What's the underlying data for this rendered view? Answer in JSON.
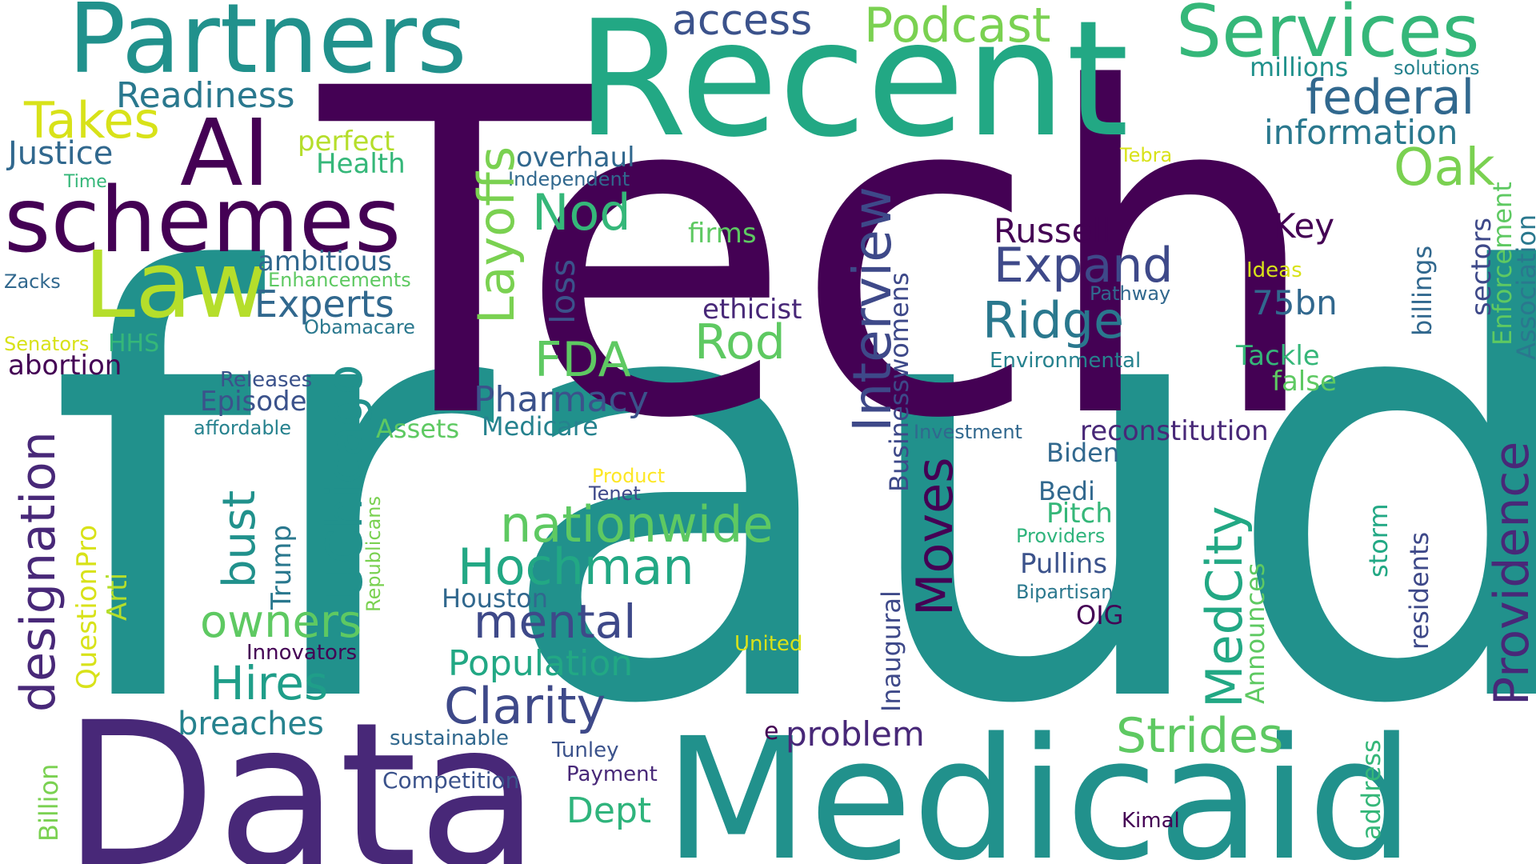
{
  "palette": {
    "purple_dark": "#440154",
    "purple": "#482878",
    "indigo": "#3e4989",
    "slate": "#31688e",
    "teal_blue": "#26828e",
    "teal": "#1f9e89",
    "green_teal": "#35b779",
    "green": "#6ece58",
    "lime": "#b5de2b",
    "yellow": "#fde725"
  },
  "words": [
    {
      "text": "fraud",
      "color": "#21918c"
    },
    {
      "text": "Tech",
      "color": "#440154"
    },
    {
      "text": "Recent",
      "color": "#22a884"
    },
    {
      "text": "Data",
      "color": "#482878"
    },
    {
      "text": "Medicaid",
      "color": "#21918c"
    },
    {
      "text": "Partners",
      "color": "#21918c"
    },
    {
      "text": "Services",
      "color": "#35b779"
    },
    {
      "text": "schemes",
      "color": "#440154"
    },
    {
      "text": "Law",
      "color": "#b5de2b"
    },
    {
      "text": "AI",
      "color": "#440154"
    },
    {
      "text": "Takes",
      "color": "#d8e219"
    },
    {
      "text": "Readiness",
      "color": "#2a788e"
    },
    {
      "text": "Justice",
      "color": "#31688e"
    },
    {
      "text": "Time",
      "color": "#35b779"
    },
    {
      "text": "Zacks",
      "color": "#31688e"
    },
    {
      "text": "Senators",
      "color": "#d8e219"
    },
    {
      "text": "HHS",
      "color": "#35b779"
    },
    {
      "text": "abortion",
      "color": "#440154"
    },
    {
      "text": "designation",
      "color": "#482878"
    },
    {
      "text": "QuestionPro",
      "color": "#d8e219"
    },
    {
      "text": "Arti",
      "color": "#b5de2b"
    },
    {
      "text": "Billion",
      "color": "#7ad151"
    },
    {
      "text": "Podcast",
      "color": "#7ad151"
    },
    {
      "text": "access",
      "color": "#3b528b"
    },
    {
      "text": "perfect",
      "color": "#b5de2b"
    },
    {
      "text": "Health",
      "color": "#35b779"
    },
    {
      "text": "overhaul",
      "color": "#31688e"
    },
    {
      "text": "Independent",
      "color": "#31688e"
    },
    {
      "text": "Layoffs",
      "color": "#7ad151"
    },
    {
      "text": "Nod",
      "color": "#35b779"
    },
    {
      "text": "firms",
      "color": "#5ec962"
    },
    {
      "text": "ambitious",
      "color": "#31688e"
    },
    {
      "text": "Enhancements",
      "color": "#5ec962"
    },
    {
      "text": "Experts",
      "color": "#31688e"
    },
    {
      "text": "Obamacare",
      "color": "#2a788e"
    },
    {
      "text": "loss",
      "color": "#3b528b"
    },
    {
      "text": "Releases",
      "color": "#3b528b"
    },
    {
      "text": "Episode",
      "color": "#3b528b"
    },
    {
      "text": "affordable",
      "color": "#26828e"
    },
    {
      "text": "UChicago",
      "color": "#21918c"
    },
    {
      "text": "bust",
      "color": "#21918c"
    },
    {
      "text": "Trump",
      "color": "#2a788e"
    },
    {
      "text": "Republicans",
      "color": "#7ad151"
    },
    {
      "text": "FDA",
      "color": "#5ec962"
    },
    {
      "text": "Rod",
      "color": "#5ec962"
    },
    {
      "text": "Assets",
      "color": "#5ec962"
    },
    {
      "text": "Pharmacy",
      "color": "#3b528b"
    },
    {
      "text": "Medicare",
      "color": "#26828e"
    },
    {
      "text": "nationwide",
      "color": "#5ec962"
    },
    {
      "text": "Hochman",
      "color": "#22a884"
    },
    {
      "text": "owners",
      "color": "#5ec962"
    },
    {
      "text": "mental",
      "color": "#3e4989"
    },
    {
      "text": "Houston",
      "color": "#31688e"
    },
    {
      "text": "Hires",
      "color": "#1f9e89"
    },
    {
      "text": "Innovators",
      "color": "#440154"
    },
    {
      "text": "Population",
      "color": "#22a884"
    },
    {
      "text": "Clarity",
      "color": "#3e4989"
    },
    {
      "text": "breaches",
      "color": "#26828e"
    },
    {
      "text": "sustainable",
      "color": "#31688e"
    },
    {
      "text": "Competition",
      "color": "#3b528b"
    },
    {
      "text": "Tunley",
      "color": "#3b528b"
    },
    {
      "text": "Payment",
      "color": "#482878"
    },
    {
      "text": "Dept",
      "color": "#2fb47c"
    },
    {
      "text": "Product",
      "color": "#fde725"
    },
    {
      "text": "Tenet",
      "color": "#3e4989"
    },
    {
      "text": "United",
      "color": "#d8e219"
    },
    {
      "text": "Interview",
      "color": "#3e4989"
    },
    {
      "text": "Businesswomens",
      "color": "#3e4989"
    },
    {
      "text": "Moves",
      "color": "#440154"
    },
    {
      "text": "Inaugural",
      "color": "#3e4989"
    },
    {
      "text": "ethicist",
      "color": "#482878"
    },
    {
      "text": "Russell",
      "color": "#440154"
    },
    {
      "text": "Expand",
      "color": "#3e4989"
    },
    {
      "text": "Ridge",
      "color": "#2a788e"
    },
    {
      "text": "Pathway",
      "color": "#31688e"
    },
    {
      "text": "Environmental",
      "color": "#26828e"
    },
    {
      "text": "Investment",
      "color": "#31688e"
    },
    {
      "text": "reconstitution",
      "color": "#482878"
    },
    {
      "text": "Biden",
      "color": "#31688e"
    },
    {
      "text": "Bedi",
      "color": "#31688e"
    },
    {
      "text": "Pitch",
      "color": "#35b779"
    },
    {
      "text": "Providers",
      "color": "#2fb47c"
    },
    {
      "text": "Pullins",
      "color": "#3b528b"
    },
    {
      "text": "Bipartisan",
      "color": "#2a788e"
    },
    {
      "text": "OIG",
      "color": "#440154"
    },
    {
      "text": "MedCity",
      "color": "#22a884"
    },
    {
      "text": "Announces",
      "color": "#5ec962"
    },
    {
      "text": "Strides",
      "color": "#5ec962"
    },
    {
      "text": "problem",
      "color": "#482878"
    },
    {
      "text": "e",
      "color": "#440154"
    },
    {
      "text": "Kimal",
      "color": "#440154"
    },
    {
      "text": "address",
      "color": "#35b779"
    },
    {
      "text": "storm",
      "color": "#22a884"
    },
    {
      "text": "residents",
      "color": "#3e4989"
    },
    {
      "text": "Providence",
      "color": "#482878"
    },
    {
      "text": "Key",
      "color": "#440154"
    },
    {
      "text": "Ideas",
      "color": "#d8e219"
    },
    {
      "text": "75bn",
      "color": "#31688e"
    },
    {
      "text": "Tackle",
      "color": "#35b779"
    },
    {
      "text": "false",
      "color": "#5ec962"
    },
    {
      "text": "Oak",
      "color": "#7ad151"
    },
    {
      "text": "federal",
      "color": "#31688e"
    },
    {
      "text": "information",
      "color": "#2a788e"
    },
    {
      "text": "millions",
      "color": "#21918c"
    },
    {
      "text": "solutions",
      "color": "#26828e"
    },
    {
      "text": "Tebra",
      "color": "#d8e219"
    },
    {
      "text": "billings",
      "color": "#31688e"
    },
    {
      "text": "sectors",
      "color": "#3e4989"
    },
    {
      "text": "Enforcement",
      "color": "#5ec962"
    },
    {
      "text": "Association",
      "color": "#2a788e"
    }
  ]
}
